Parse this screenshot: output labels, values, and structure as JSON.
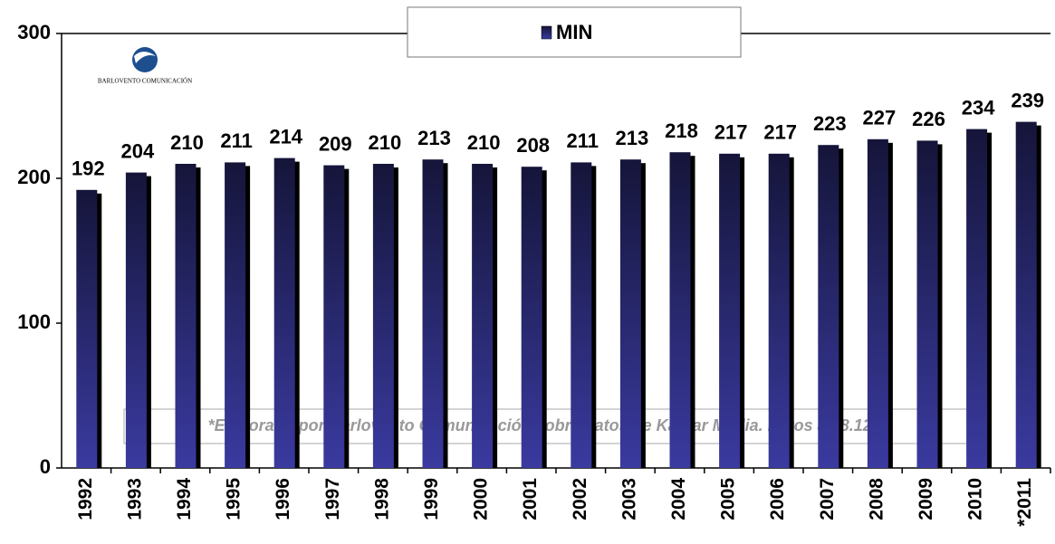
{
  "chart_data": {
    "type": "bar",
    "legend": "MIN",
    "logo_text": "BARLOVENTO COMUNICACIÓN",
    "note": "*Elaborado por Barlovento Comunicación sobre datos de Kantar Media. Datos a 28.12.11",
    "categories": [
      "1992",
      "1993",
      "1994",
      "1995",
      "1996",
      "1997",
      "1998",
      "1999",
      "2000",
      "2001",
      "2002",
      "2003",
      "2004",
      "2005",
      "2006",
      "2007",
      "2008",
      "2009",
      "2010",
      "*2011"
    ],
    "values": [
      192,
      204,
      210,
      211,
      214,
      209,
      210,
      213,
      210,
      208,
      211,
      213,
      218,
      217,
      217,
      223,
      227,
      226,
      234,
      239
    ],
    "color": "#3a3aa0",
    "ylim": [
      0,
      300
    ],
    "yticks": [
      0,
      100,
      200,
      300
    ],
    "grid": false
  }
}
